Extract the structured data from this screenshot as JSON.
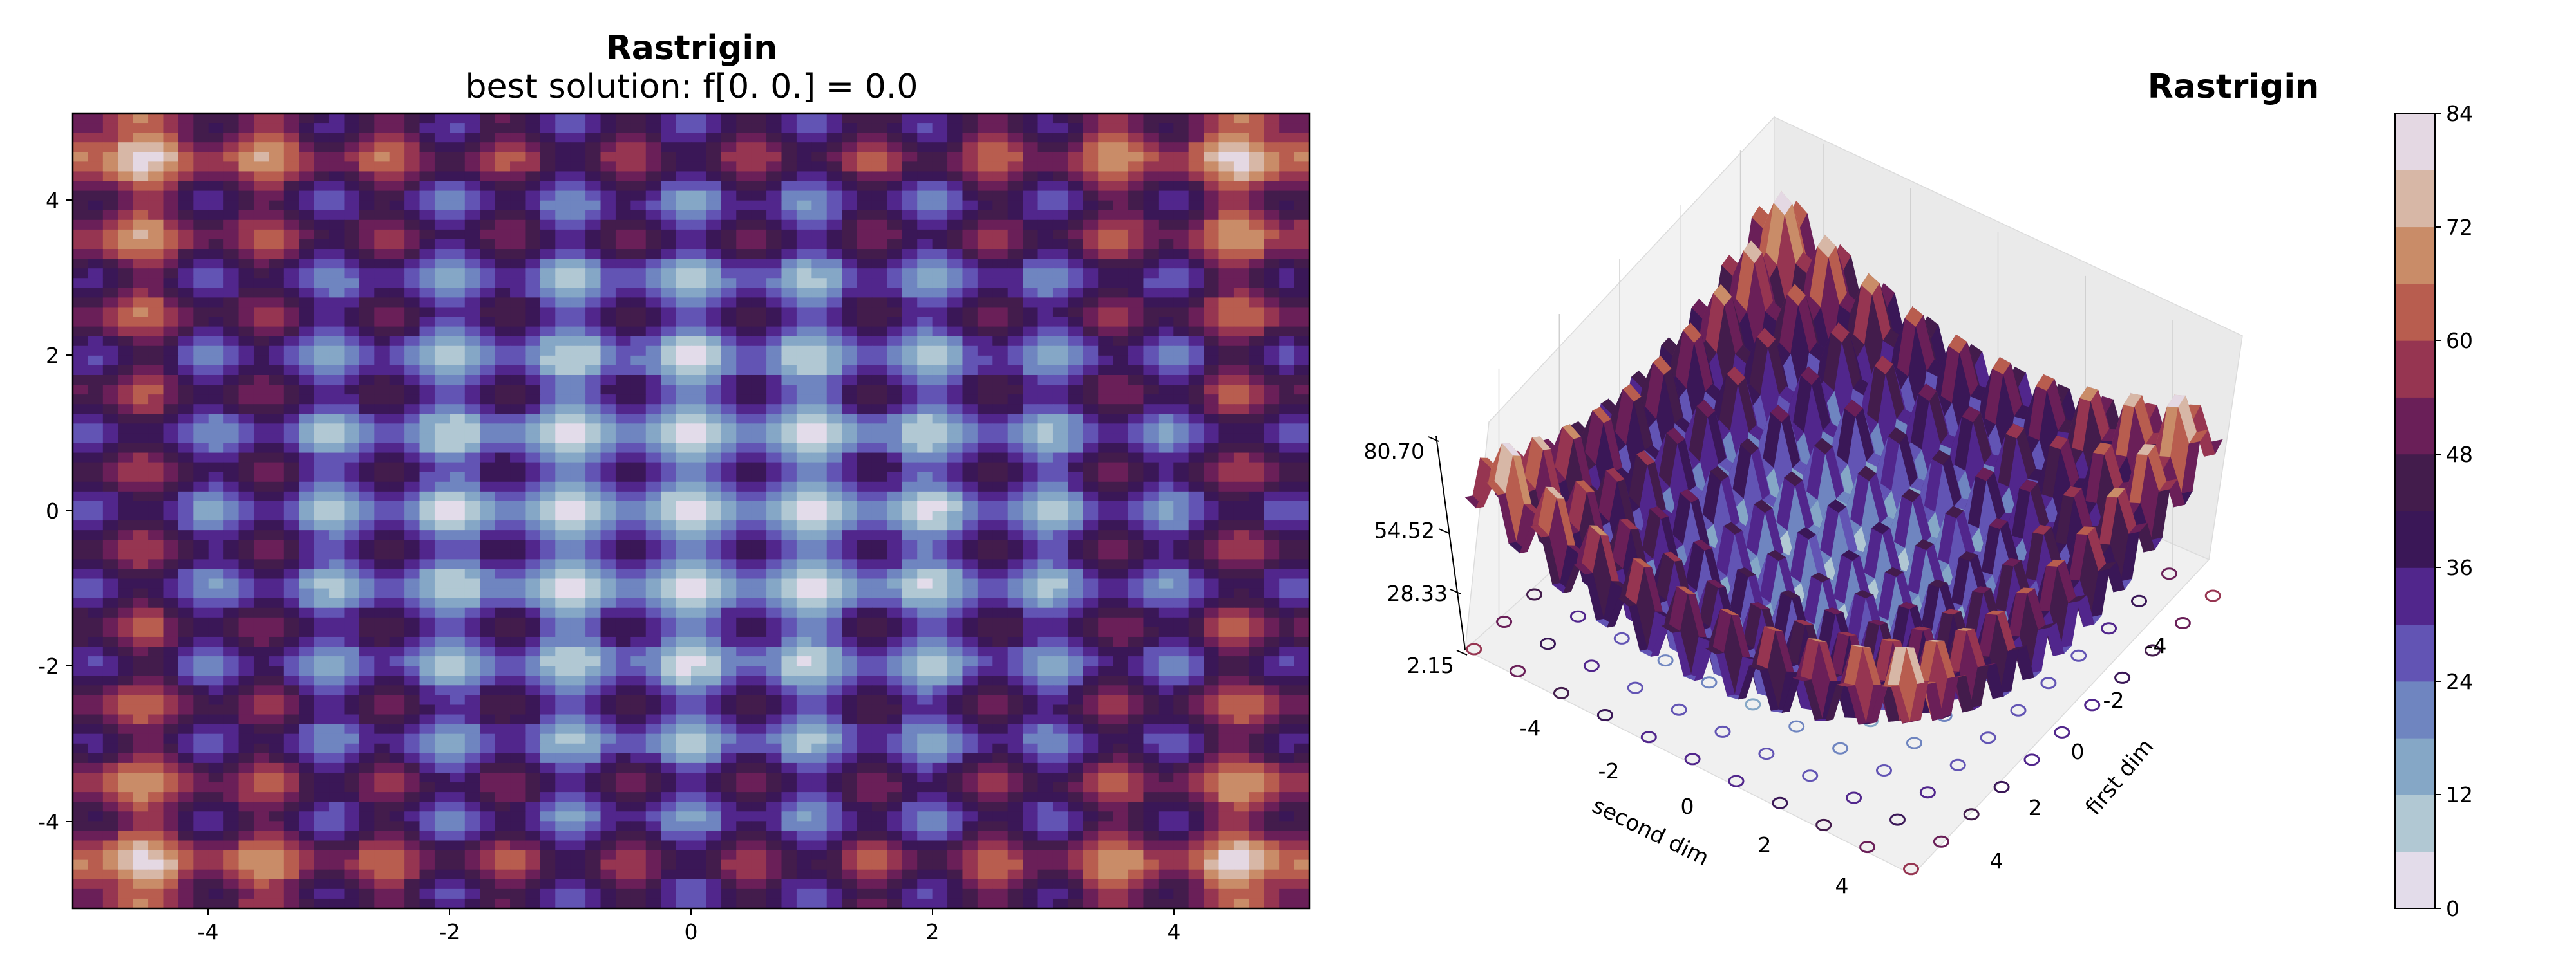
{
  "chart_data": [
    {
      "type": "contour",
      "function": "rastrigin",
      "title": "Rastrigin",
      "subtitle": "best solution: f[0. 0.] = 0.0",
      "xlim": [
        -5.12,
        5.12
      ],
      "ylim": [
        -5.12,
        5.12
      ],
      "xticks": [
        -4,
        -2,
        0,
        2,
        4
      ],
      "yticks": [
        4,
        2,
        0,
        -2,
        -4
      ],
      "grid_step": 0.25,
      "best_solution": {
        "x": 0.0,
        "y": 0.0,
        "f": 0.0
      }
    },
    {
      "type": "surface3d",
      "function": "rastrigin",
      "title": "Rastrigin",
      "xlabel": "first dim",
      "ylabel": "second dim",
      "zticks": [
        "80.70",
        "54.52",
        "28.33",
        "2.15"
      ],
      "first_dim_ticks": [
        -4,
        -2,
        0,
        2,
        4
      ],
      "second_dim_ticks": [
        -4,
        -2,
        0,
        2,
        4
      ],
      "grid_step": 0.25
    },
    {
      "type": "colorbar",
      "ticks": [
        84,
        72,
        60,
        48,
        36,
        24,
        12,
        0
      ],
      "levels": [
        0,
        6,
        12,
        18,
        24,
        30,
        36,
        42,
        48,
        54,
        60,
        66,
        72,
        78,
        84
      ],
      "colors": [
        "#e3dcea",
        "#b1c8d3",
        "#85a7c6",
        "#6f85c0",
        "#6254b4",
        "#51268c",
        "#3a1757",
        "#431c4c",
        "#6a1f58",
        "#963551",
        "#b85d4f",
        "#c98c68",
        "#d7b7a6",
        "#e4d8e3"
      ]
    }
  ]
}
